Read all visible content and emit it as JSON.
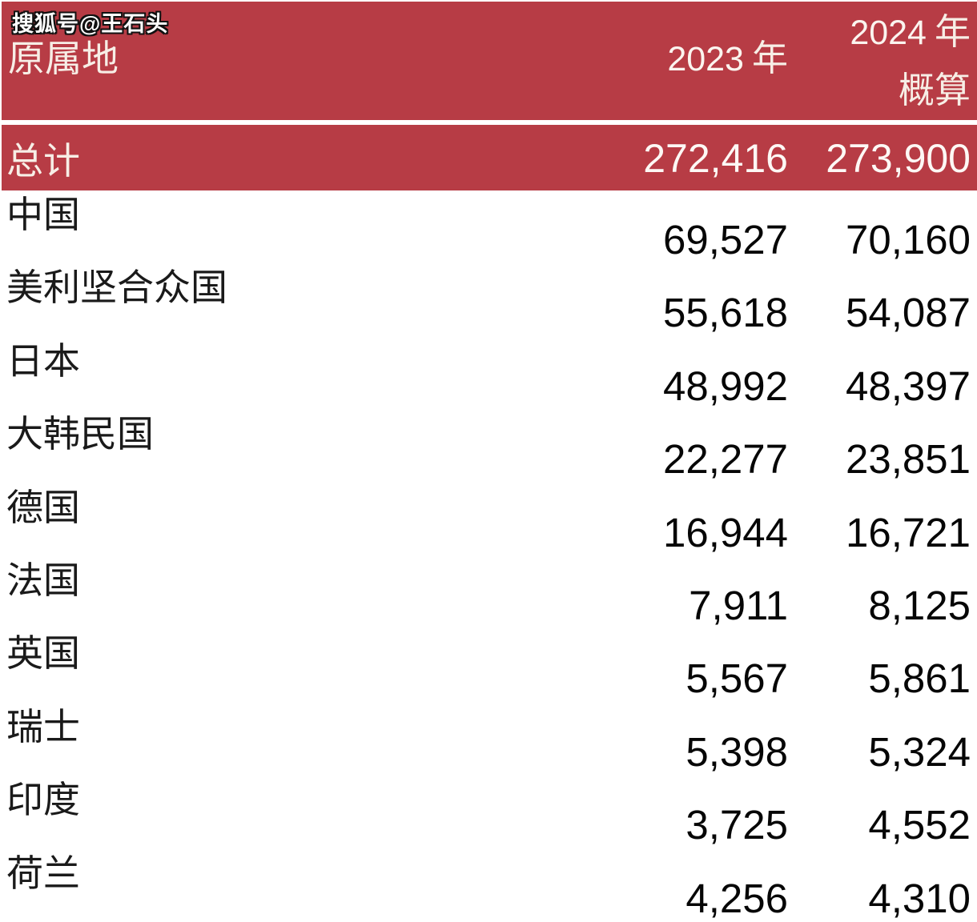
{
  "watermark": {
    "text": "搜狐号@王石头"
  },
  "header": {
    "origin": "原属地",
    "col2023": {
      "num": "2023",
      "unit": "年"
    },
    "col2024": {
      "num": "2024",
      "unit": "年",
      "sub": "概算"
    }
  },
  "total": {
    "label": "总计",
    "v2023": "272,416",
    "v2024": "273,900"
  },
  "rows": [
    {
      "name": "中国",
      "v2023": "69,527",
      "v2024": "70,160"
    },
    {
      "name": "美利坚合众国",
      "v2023": "55,618",
      "v2024": "54,087"
    },
    {
      "name": "日本",
      "v2023": "48,992",
      "v2024": "48,397"
    },
    {
      "name": "大韩民国",
      "v2023": "22,277",
      "v2024": "23,851"
    },
    {
      "name": "德国",
      "v2023": "16,944",
      "v2024": "16,721"
    },
    {
      "name": "法国",
      "v2023": "7,911",
      "v2024": "8,125"
    },
    {
      "name": "英国",
      "v2023": "5,567",
      "v2024": "5,861"
    },
    {
      "name": "瑞士",
      "v2023": "5,398",
      "v2024": "5,324"
    },
    {
      "name": "印度",
      "v2023": "3,725",
      "v2024": "4,552"
    },
    {
      "name": "荷兰",
      "v2023": "4,256",
      "v2024": "4,310"
    }
  ],
  "colors": {
    "header_red": "#b73c45",
    "header_text": "#f7eee6",
    "total_number_text": "#fdf8f5",
    "body_text": "#1a1a1a",
    "number_text": "#060606"
  },
  "chart_data": {
    "type": "table",
    "title": "原属地 — 2023 年 / 2024 年概算",
    "columns": [
      "原属地",
      "2023 年",
      "2024 年 概算"
    ],
    "total_row": {
      "label": "总计",
      "y2023": 272416,
      "y2024": 273900
    },
    "categories": [
      "中国",
      "美利坚合众国",
      "日本",
      "大韩民国",
      "德国",
      "法国",
      "英国",
      "瑞士",
      "印度",
      "荷兰"
    ],
    "series": [
      {
        "name": "2023 年",
        "values": [
          69527,
          55618,
          48992,
          22277,
          16944,
          7911,
          5567,
          5398,
          3725,
          4256
        ]
      },
      {
        "name": "2024 年 概算",
        "values": [
          70160,
          54087,
          48397,
          23851,
          16721,
          8125,
          5861,
          5324,
          4552,
          4310
        ]
      }
    ],
    "layout_hints": {
      "header_background": "#b73c45",
      "total_row_background": "#b73c45",
      "body_background": "#ffffff",
      "numeric_columns_right_aligned": true
    }
  }
}
